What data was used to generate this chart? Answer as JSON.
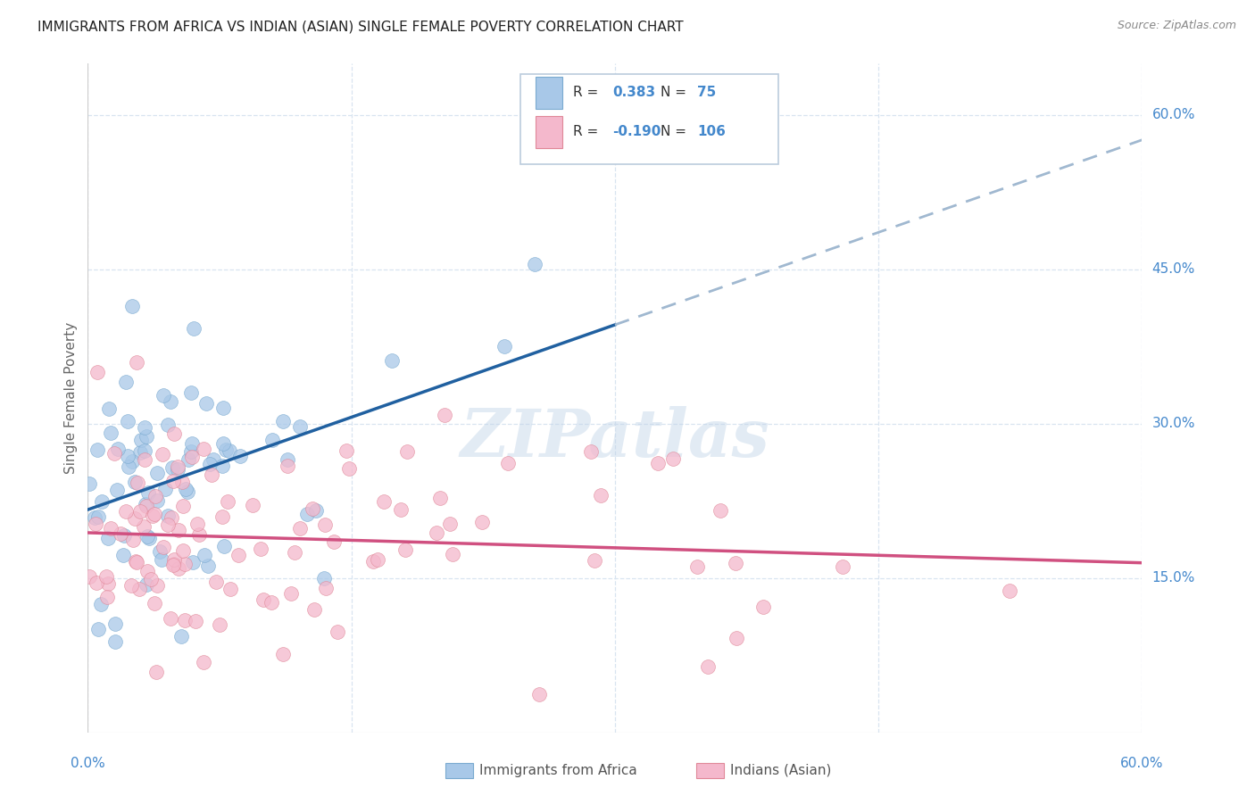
{
  "title": "IMMIGRANTS FROM AFRICA VS INDIAN (ASIAN) SINGLE FEMALE POVERTY CORRELATION CHART",
  "source": "Source: ZipAtlas.com",
  "ylabel": "Single Female Poverty",
  "watermark": "ZIPatlas",
  "africa_R": 0.383,
  "africa_N": 75,
  "india_R": -0.19,
  "india_N": 106,
  "xlim": [
    0.0,
    0.6
  ],
  "ylim": [
    0.0,
    0.65
  ],
  "yticks": [
    0.15,
    0.3,
    0.45,
    0.6
  ],
  "ytick_labels": [
    "15.0%",
    "30.0%",
    "45.0%",
    "60.0%"
  ],
  "xticks": [
    0.0,
    0.15,
    0.3,
    0.45,
    0.6
  ],
  "africa_scatter_color": "#a8c8e8",
  "africa_scatter_edge": "#7aaad0",
  "india_scatter_color": "#f4b8cc",
  "india_scatter_edge": "#e08898",
  "africa_line_color": "#2060a0",
  "india_line_color": "#d05080",
  "africa_line_dash_color": "#a0b8d0",
  "axis_color": "#4488cc",
  "grid_color": "#d8e4f0",
  "title_color": "#222222",
  "source_color": "#888888",
  "ylabel_color": "#666666",
  "seed": 123
}
